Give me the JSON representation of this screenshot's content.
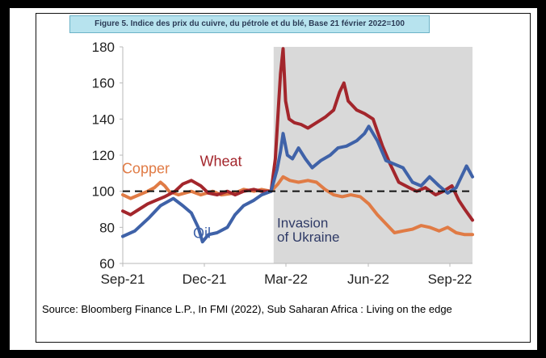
{
  "figure_title": "Figure 5. Indice des prix du cuivre, du pétrole et du blé, Base 21 février 2022=100",
  "source_text": "Source: Bloomberg Finance L.P., In FMI (2022), Sub Saharan Africa : Living on the edge",
  "chart_data": {
    "type": "line",
    "title": "Figure 5. Indice des prix du cuivre, du pétrole et du blé, Base 21 février 2022=100",
    "xlabel": "",
    "ylabel": "",
    "x_ticks": [
      "Sep-21",
      "Dec-21",
      "Mar-22",
      "Jun-22",
      "Sep-22"
    ],
    "x_range": [
      "2021-09-01",
      "2022-10-14"
    ],
    "ylim": [
      60,
      180
    ],
    "y_ticks": [
      60,
      80,
      100,
      120,
      140,
      160,
      180
    ],
    "reference_line": {
      "y": 100,
      "style": "dashed"
    },
    "shaded_region": {
      "from": "2022-02-24",
      "to": "2022-10-14",
      "color": "#d9d9d9"
    },
    "grid": false,
    "annotations": [
      {
        "text": "Invasion",
        "x": "2022-02-28",
        "y": 80,
        "color": "#2f3a66"
      },
      {
        "text": "of Ukraine",
        "x": "2022-02-28",
        "y": 72,
        "color": "#2f3a66"
      }
    ],
    "series": [
      {
        "name": "Copper",
        "color": "#e07b45",
        "label_at": {
          "x": "2021-08-31",
          "y": 110
        },
        "points": [
          [
            "2021-09-01",
            98
          ],
          [
            "2021-09-10",
            96
          ],
          [
            "2021-09-20",
            98
          ],
          [
            "2021-09-30",
            100
          ],
          [
            "2021-10-08",
            102
          ],
          [
            "2021-10-15",
            105
          ],
          [
            "2021-10-20",
            103
          ],
          [
            "2021-10-25",
            100
          ],
          [
            "2021-11-05",
            98
          ],
          [
            "2021-11-20",
            100
          ],
          [
            "2021-12-01",
            98
          ],
          [
            "2021-12-15",
            100
          ],
          [
            "2021-12-25",
            98
          ],
          [
            "2022-01-10",
            99
          ],
          [
            "2022-01-20",
            101
          ],
          [
            "2022-02-01",
            100
          ],
          [
            "2022-02-10",
            101
          ],
          [
            "2022-02-21",
            100
          ],
          [
            "2022-03-01",
            104
          ],
          [
            "2022-03-07",
            108
          ],
          [
            "2022-03-15",
            106
          ],
          [
            "2022-03-25",
            105
          ],
          [
            "2022-04-05",
            106
          ],
          [
            "2022-04-15",
            105
          ],
          [
            "2022-04-25",
            101
          ],
          [
            "2022-05-05",
            98
          ],
          [
            "2022-05-15",
            97
          ],
          [
            "2022-05-25",
            98
          ],
          [
            "2022-06-05",
            97
          ],
          [
            "2022-06-15",
            93
          ],
          [
            "2022-06-25",
            87
          ],
          [
            "2022-07-05",
            82
          ],
          [
            "2022-07-15",
            77
          ],
          [
            "2022-07-25",
            78
          ],
          [
            "2022-08-05",
            79
          ],
          [
            "2022-08-15",
            81
          ],
          [
            "2022-08-25",
            80
          ],
          [
            "2022-09-05",
            78
          ],
          [
            "2022-09-15",
            80
          ],
          [
            "2022-09-25",
            77
          ],
          [
            "2022-10-05",
            76
          ],
          [
            "2022-10-14",
            76
          ]
        ]
      },
      {
        "name": "Wheat",
        "color": "#a3262c",
        "label_at": {
          "x": "2021-11-30",
          "y": 114
        },
        "points": [
          [
            "2021-09-01",
            89
          ],
          [
            "2021-09-10",
            87
          ],
          [
            "2021-09-20",
            90
          ],
          [
            "2021-09-30",
            93
          ],
          [
            "2021-10-10",
            95
          ],
          [
            "2021-10-20",
            97
          ],
          [
            "2021-11-01",
            100
          ],
          [
            "2021-11-10",
            104
          ],
          [
            "2021-11-20",
            106
          ],
          [
            "2021-12-01",
            103
          ],
          [
            "2021-12-10",
            99
          ],
          [
            "2021-12-20",
            98
          ],
          [
            "2022-01-01",
            100
          ],
          [
            "2022-01-10",
            98
          ],
          [
            "2022-01-20",
            100
          ],
          [
            "2022-02-01",
            101
          ],
          [
            "2022-02-10",
            100
          ],
          [
            "2022-02-21",
            100
          ],
          [
            "2022-02-26",
            118
          ],
          [
            "2022-03-02",
            150
          ],
          [
            "2022-03-04",
            165
          ],
          [
            "2022-03-07",
            179
          ],
          [
            "2022-03-10",
            150
          ],
          [
            "2022-03-14",
            140
          ],
          [
            "2022-03-20",
            138
          ],
          [
            "2022-03-28",
            137
          ],
          [
            "2022-04-05",
            135
          ],
          [
            "2022-04-15",
            138
          ],
          [
            "2022-04-25",
            141
          ],
          [
            "2022-05-05",
            145
          ],
          [
            "2022-05-12",
            155
          ],
          [
            "2022-05-17",
            160
          ],
          [
            "2022-05-22",
            150
          ],
          [
            "2022-06-01",
            145
          ],
          [
            "2022-06-10",
            143
          ],
          [
            "2022-06-20",
            140
          ],
          [
            "2022-07-01",
            125
          ],
          [
            "2022-07-10",
            115
          ],
          [
            "2022-07-20",
            105
          ],
          [
            "2022-08-01",
            102
          ],
          [
            "2022-08-10",
            100
          ],
          [
            "2022-08-20",
            102
          ],
          [
            "2022-09-01",
            98
          ],
          [
            "2022-09-10",
            100
          ],
          [
            "2022-09-20",
            103
          ],
          [
            "2022-09-28",
            95
          ],
          [
            "2022-10-05",
            90
          ],
          [
            "2022-10-14",
            84
          ]
        ]
      },
      {
        "name": "Oil",
        "color": "#3f62a8",
        "label_at": {
          "x": "2021-11-22",
          "y": 74
        },
        "points": [
          [
            "2021-09-01",
            75
          ],
          [
            "2021-09-15",
            78
          ],
          [
            "2021-10-01",
            85
          ],
          [
            "2021-10-15",
            92
          ],
          [
            "2021-10-30",
            96
          ],
          [
            "2021-11-10",
            92
          ],
          [
            "2021-11-20",
            88
          ],
          [
            "2021-11-28",
            80
          ],
          [
            "2021-12-03",
            72
          ],
          [
            "2021-12-10",
            76
          ],
          [
            "2021-12-20",
            77
          ],
          [
            "2022-01-01",
            80
          ],
          [
            "2022-01-10",
            87
          ],
          [
            "2022-01-20",
            92
          ],
          [
            "2022-02-01",
            95
          ],
          [
            "2022-02-10",
            98
          ],
          [
            "2022-02-21",
            100
          ],
          [
            "2022-02-28",
            112
          ],
          [
            "2022-03-04",
            122
          ],
          [
            "2022-03-07",
            132
          ],
          [
            "2022-03-12",
            120
          ],
          [
            "2022-03-18",
            118
          ],
          [
            "2022-03-25",
            124
          ],
          [
            "2022-04-02",
            118
          ],
          [
            "2022-04-10",
            113
          ],
          [
            "2022-04-20",
            117
          ],
          [
            "2022-05-01",
            120
          ],
          [
            "2022-05-10",
            124
          ],
          [
            "2022-05-20",
            125
          ],
          [
            "2022-06-01",
            128
          ],
          [
            "2022-06-10",
            132
          ],
          [
            "2022-06-15",
            136
          ],
          [
            "2022-06-25",
            128
          ],
          [
            "2022-07-05",
            117
          ],
          [
            "2022-07-15",
            115
          ],
          [
            "2022-07-25",
            113
          ],
          [
            "2022-08-05",
            105
          ],
          [
            "2022-08-15",
            103
          ],
          [
            "2022-08-25",
            108
          ],
          [
            "2022-09-05",
            103
          ],
          [
            "2022-09-15",
            99
          ],
          [
            "2022-09-25",
            102
          ],
          [
            "2022-10-01",
            108
          ],
          [
            "2022-10-07",
            114
          ],
          [
            "2022-10-14",
            108
          ]
        ]
      }
    ]
  }
}
